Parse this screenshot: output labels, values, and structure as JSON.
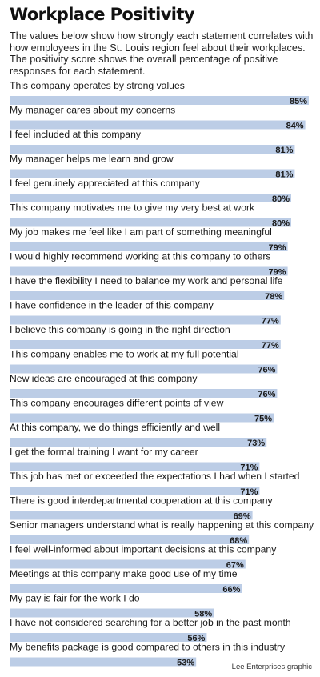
{
  "header": {
    "title": "Workplace Positivity",
    "subtitle": "The values below show how strongly each statement correlates with how employees in the St. Louis region feel about their workplaces. The positivity score shows the overall percentage of positive responses for each statement."
  },
  "footer": {
    "credit": "Lee Enterprises graphic"
  },
  "colors": {
    "bar": "#bccde6",
    "text": "#1a1a1a"
  },
  "chart_data": {
    "type": "bar",
    "orientation": "horizontal",
    "grid": false,
    "legend": "none",
    "xlim": [
      0,
      85
    ],
    "value_suffix": "%",
    "categories": [
      "This company operates by strong values",
      "My manager cares about my concerns",
      "I feel included at this company",
      "My manager helps me learn and grow",
      "I feel genuinely appreciated at this company",
      "This company motivates me to give my very best at work",
      "My job makes me feel like I am part of something meaningful",
      "I would highly recommend working at this company to others",
      "I have the flexibility I need to balance my work and personal life",
      "I have confidence in the leader of this company",
      "I believe this company is going in the right direction",
      "This company enables me to work at my full potential",
      "New ideas are encouraged at this company",
      "This company encourages different points of view",
      "At this company, we do things efficiently and well",
      "I get the formal training I want for my career",
      "This job has met or exceeded the expectations I had when I started",
      "There is good interdepartmental cooperation at this company",
      "Senior managers understand what is really happening at this company",
      "I feel well-informed about important decisions at this company",
      "Meetings at this company make good use of my time",
      "My pay is fair for the work I do",
      "I have not considered searching for a better job in the past month",
      "My benefits package is good compared to others in this industry"
    ],
    "values": [
      85,
      84,
      81,
      81,
      80,
      80,
      79,
      79,
      78,
      77,
      77,
      76,
      76,
      75,
      73,
      71,
      71,
      69,
      68,
      67,
      66,
      58,
      56,
      53
    ]
  }
}
